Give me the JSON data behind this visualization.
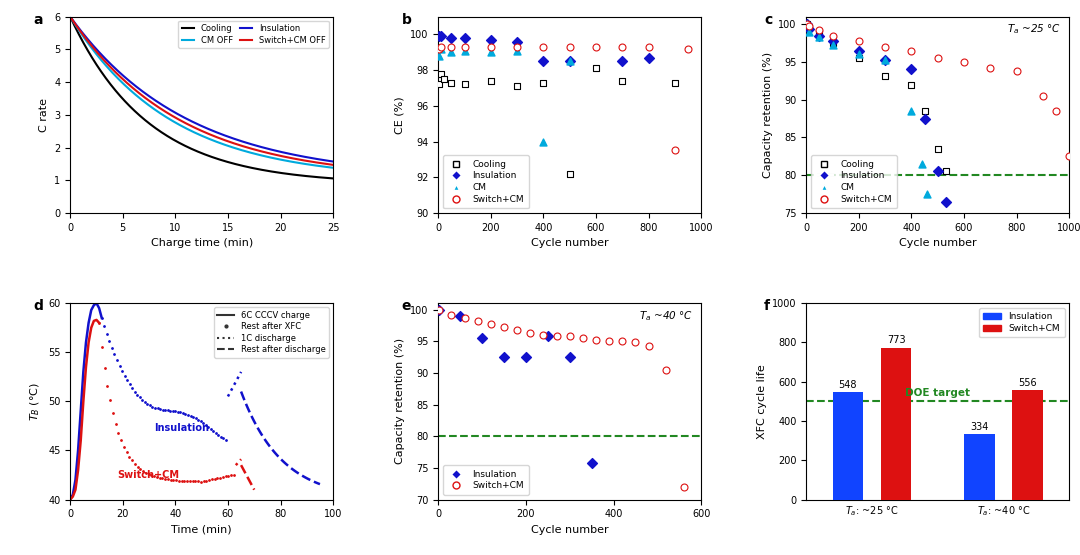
{
  "panel_a": {
    "xlabel": "Charge time (min)",
    "ylabel": "C rate",
    "xlim": [
      0,
      25
    ],
    "ylim": [
      0,
      6
    ],
    "yticks": [
      0,
      1,
      2,
      3,
      4,
      5,
      6
    ],
    "xticks": [
      0,
      5,
      10,
      15,
      20,
      25
    ]
  },
  "panel_b": {
    "xlabel": "Cycle number",
    "ylabel": "CE (%)",
    "xlim": [
      0,
      1000
    ],
    "ylim": [
      90,
      101
    ],
    "yticks": [
      90,
      92,
      94,
      96,
      98,
      100
    ],
    "xticks": [
      0,
      200,
      400,
      600,
      800,
      1000
    ],
    "cooling_ce": [
      [
        1,
        97.2
      ],
      [
        10,
        97.8
      ],
      [
        20,
        97.5
      ],
      [
        50,
        97.3
      ],
      [
        100,
        97.2
      ],
      [
        200,
        97.4
      ],
      [
        300,
        97.1
      ],
      [
        400,
        97.3
      ],
      [
        500,
        92.2
      ],
      [
        600,
        98.1
      ],
      [
        700,
        97.4
      ],
      [
        900,
        97.3
      ]
    ],
    "insulation_ce": [
      [
        1,
        99.9
      ],
      [
        10,
        99.9
      ],
      [
        50,
        99.8
      ],
      [
        100,
        99.8
      ],
      [
        200,
        99.7
      ],
      [
        300,
        99.6
      ],
      [
        400,
        98.5
      ],
      [
        500,
        98.5
      ],
      [
        700,
        98.5
      ],
      [
        800,
        98.7
      ]
    ],
    "cm_ce": [
      [
        1,
        98.8
      ],
      [
        10,
        99.2
      ],
      [
        50,
        99.0
      ],
      [
        100,
        99.1
      ],
      [
        200,
        99.0
      ],
      [
        300,
        99.1
      ],
      [
        400,
        94.0
      ],
      [
        500,
        98.5
      ]
    ],
    "switchcm_ce": [
      [
        1,
        99.2
      ],
      [
        10,
        99.3
      ],
      [
        50,
        99.3
      ],
      [
        100,
        99.3
      ],
      [
        200,
        99.3
      ],
      [
        300,
        99.3
      ],
      [
        400,
        99.3
      ],
      [
        500,
        99.3
      ],
      [
        600,
        99.3
      ],
      [
        700,
        99.3
      ],
      [
        800,
        99.3
      ],
      [
        900,
        93.5
      ],
      [
        950,
        99.2
      ]
    ]
  },
  "panel_c": {
    "xlabel": "Cycle number",
    "ylabel": "Capacity retention (%)",
    "xlim": [
      0,
      1000
    ],
    "ylim": [
      75,
      101
    ],
    "yticks": [
      75,
      80,
      85,
      90,
      95,
      100
    ],
    "xticks": [
      0,
      200,
      400,
      600,
      800,
      1000
    ],
    "dashed_y": 80,
    "cooling_cr": [
      [
        1,
        100
      ],
      [
        10,
        99.5
      ],
      [
        50,
        98.8
      ],
      [
        100,
        97.5
      ],
      [
        200,
        95.5
      ],
      [
        300,
        93.2
      ],
      [
        400,
        92.0
      ],
      [
        450,
        88.5
      ],
      [
        500,
        83.5
      ],
      [
        530,
        80.5
      ]
    ],
    "insulation_cr": [
      [
        1,
        100
      ],
      [
        10,
        99.3
      ],
      [
        50,
        98.5
      ],
      [
        100,
        97.8
      ],
      [
        200,
        96.5
      ],
      [
        300,
        95.2
      ],
      [
        400,
        94.0
      ],
      [
        450,
        87.5
      ],
      [
        500,
        80.5
      ],
      [
        530,
        76.5
      ]
    ],
    "cm_cr": [
      [
        1,
        100
      ],
      [
        10,
        99.0
      ],
      [
        50,
        98.3
      ],
      [
        100,
        97.2
      ],
      [
        200,
        96.0
      ],
      [
        300,
        95.3
      ],
      [
        400,
        88.5
      ],
      [
        440,
        81.5
      ],
      [
        460,
        77.5
      ]
    ],
    "switchcm_cr": [
      [
        1,
        100
      ],
      [
        10,
        99.7
      ],
      [
        50,
        99.2
      ],
      [
        100,
        98.5
      ],
      [
        200,
        97.8
      ],
      [
        300,
        97.0
      ],
      [
        400,
        96.5
      ],
      [
        500,
        95.5
      ],
      [
        600,
        95.0
      ],
      [
        700,
        94.2
      ],
      [
        800,
        93.8
      ],
      [
        900,
        90.5
      ],
      [
        950,
        88.5
      ],
      [
        1000,
        82.5
      ]
    ]
  },
  "panel_d": {
    "xlabel": "Time (min)",
    "ylabel": "T_B (°C)",
    "xlim": [
      0,
      100
    ],
    "ylim": [
      40,
      60
    ],
    "yticks": [
      40,
      45,
      50,
      55,
      60
    ],
    "xticks": [
      0,
      20,
      40,
      60,
      80,
      100
    ]
  },
  "panel_e": {
    "xlabel": "Cycle number",
    "ylabel": "Capacity retention (%)",
    "xlim": [
      0,
      600
    ],
    "ylim": [
      70,
      101
    ],
    "yticks": [
      70,
      75,
      80,
      85,
      90,
      95,
      100
    ],
    "xticks": [
      0,
      200,
      400,
      600
    ],
    "dashed_y": 80,
    "insulation_cr40": [
      [
        1,
        100
      ],
      [
        50,
        99.0
      ],
      [
        100,
        95.5
      ],
      [
        150,
        92.5
      ],
      [
        200,
        92.5
      ],
      [
        250,
        95.8
      ],
      [
        300,
        92.5
      ],
      [
        350,
        75.8
      ]
    ],
    "switchcm_cr40": [
      [
        1,
        100
      ],
      [
        30,
        99.2
      ],
      [
        60,
        98.7
      ],
      [
        90,
        98.2
      ],
      [
        120,
        97.7
      ],
      [
        150,
        97.2
      ],
      [
        180,
        96.8
      ],
      [
        210,
        96.3
      ],
      [
        240,
        96.0
      ],
      [
        270,
        95.8
      ],
      [
        300,
        95.8
      ],
      [
        330,
        95.5
      ],
      [
        360,
        95.2
      ],
      [
        390,
        95.0
      ],
      [
        420,
        95.0
      ],
      [
        450,
        94.8
      ],
      [
        480,
        94.2
      ],
      [
        520,
        90.5
      ],
      [
        560,
        72.0
      ]
    ]
  },
  "panel_f": {
    "ylabel": "XFC cycle life",
    "ylim": [
      0,
      1000
    ],
    "yticks": [
      0,
      200,
      400,
      600,
      800,
      1000
    ],
    "dashed_y": 500,
    "ins_25": 548,
    "sw_25": 773,
    "ins_40": 334,
    "sw_40": 556,
    "ins_color": "#1144FF",
    "sw_color": "#DD1111"
  },
  "colors": {
    "cooling": "#000000",
    "insulation": "#1111CC",
    "cm": "#00AADD",
    "switchcm": "#DD1111",
    "green": "#228822"
  }
}
